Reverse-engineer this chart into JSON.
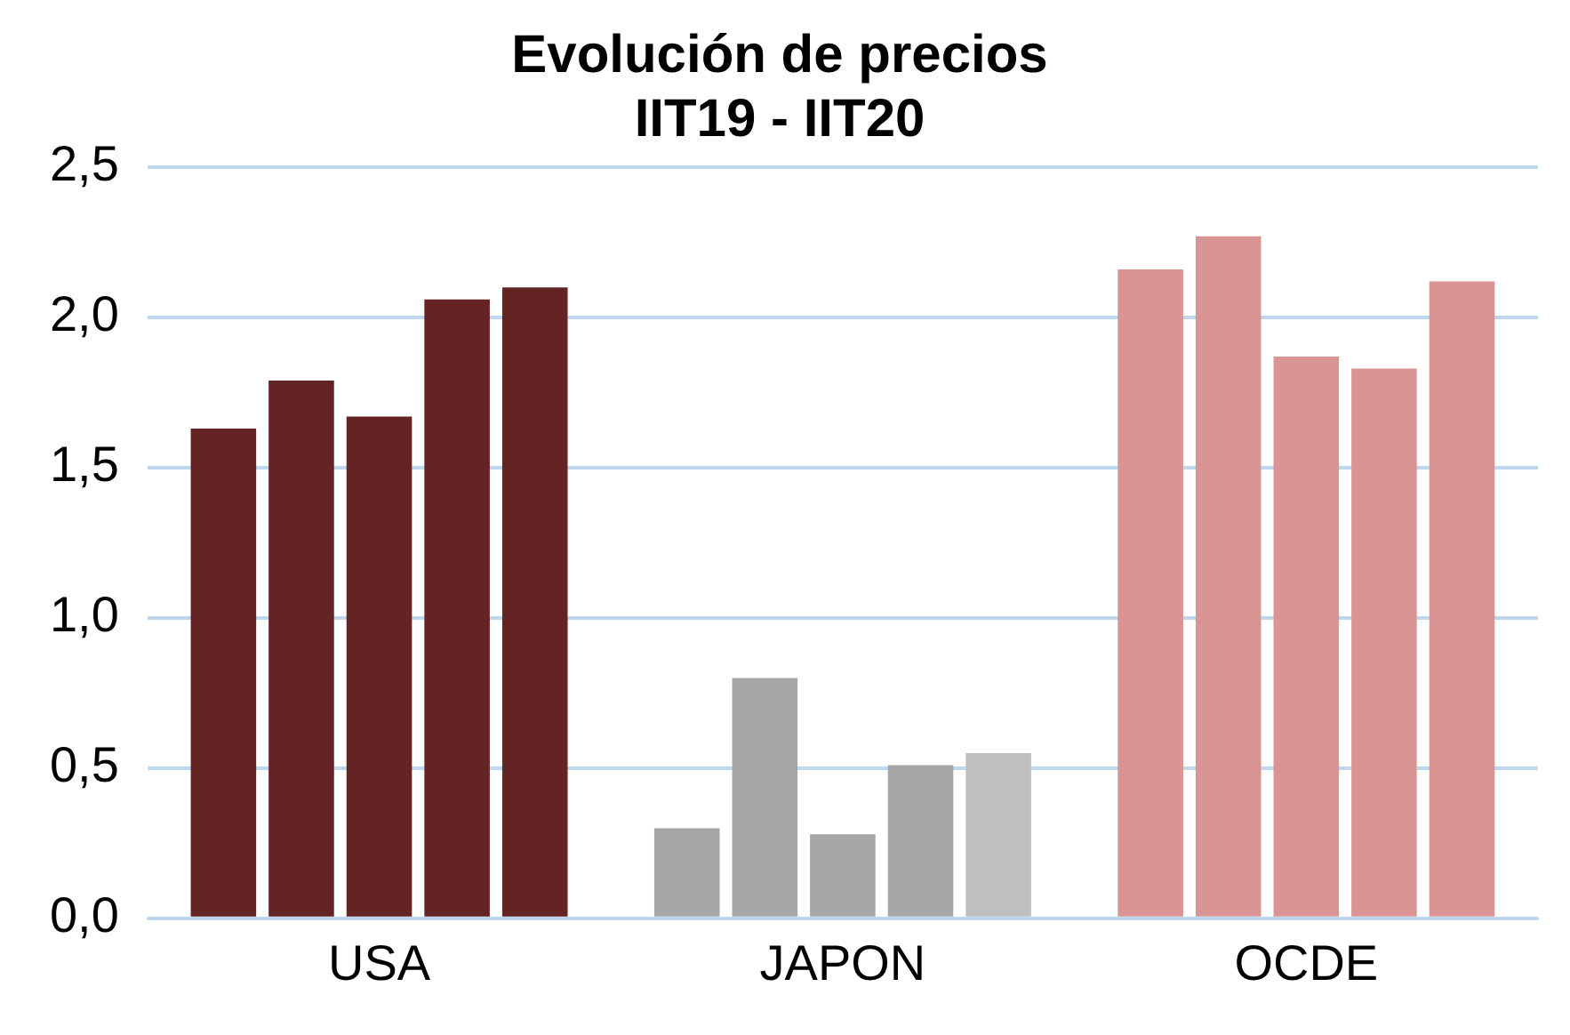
{
  "chart_data": {
    "type": "bar",
    "title": "Evolución de precios",
    "subtitle": "IIT19 - IIT20",
    "categories": [
      "USA",
      "JAPON",
      "OCDE"
    ],
    "series": [
      {
        "colors": [
          "#632423",
          "#a6a6a6",
          "#d99594"
        ],
        "values": [
          1.63,
          0.3,
          2.16
        ]
      },
      {
        "colors": [
          "#632423",
          "#a6a6a6",
          "#d99594"
        ],
        "values": [
          1.79,
          0.8,
          2.27
        ]
      },
      {
        "colors": [
          "#632423",
          "#a6a6a6",
          "#d99594"
        ],
        "values": [
          1.67,
          0.28,
          1.87
        ]
      },
      {
        "colors": [
          "#632423",
          "#a6a6a6",
          "#d99594"
        ],
        "values": [
          2.06,
          0.51,
          1.83
        ]
      },
      {
        "colors": [
          "#632423",
          "#bfbfbf",
          "#d99594"
        ],
        "values": [
          2.1,
          0.55,
          2.12
        ]
      }
    ],
    "ylim": [
      0,
      2.5
    ],
    "yticks": [
      {
        "value": 0,
        "label": "0,0"
      },
      {
        "value": 0.5,
        "label": "0,5"
      },
      {
        "value": 1,
        "label": "1,0"
      },
      {
        "value": 1.5,
        "label": "1,5"
      },
      {
        "value": 2,
        "label": "2,0"
      },
      {
        "value": 2.5,
        "label": "2,5"
      }
    ],
    "grid": "y",
    "legend": false
  }
}
